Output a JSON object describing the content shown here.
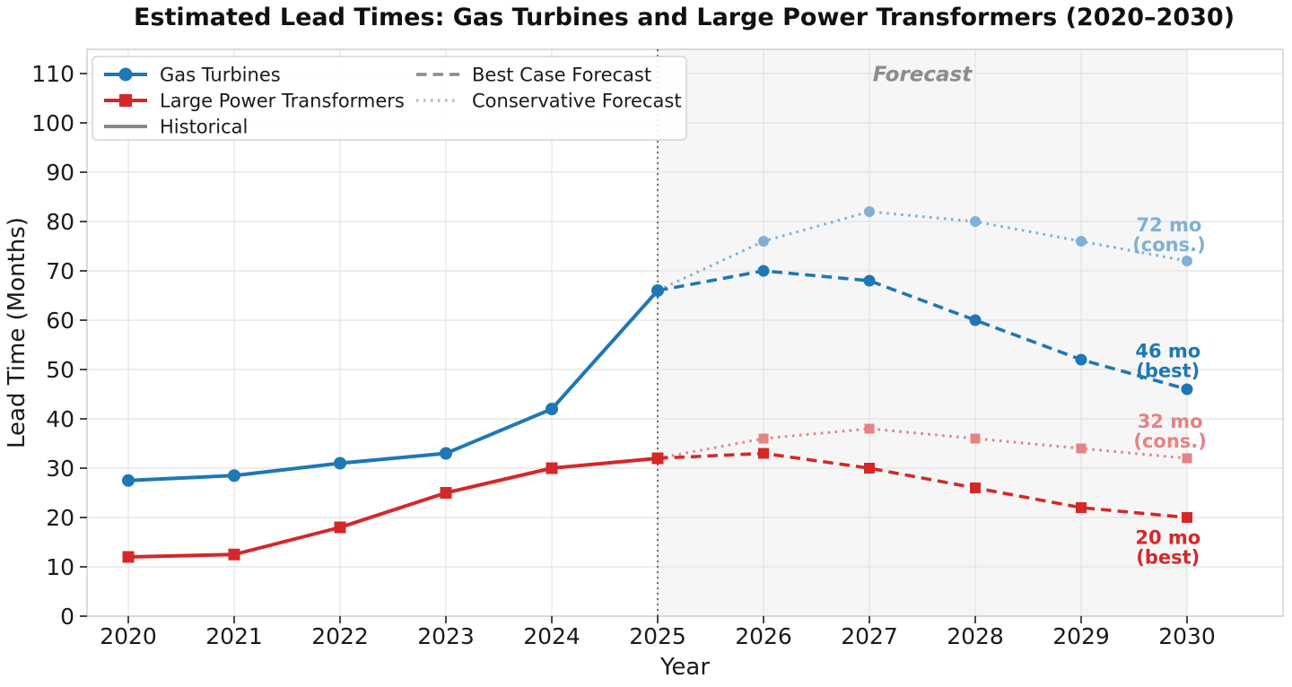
{
  "chart_data": {
    "type": "line",
    "title": "Estimated Lead Times: Gas Turbines and Large Power Transformers (2020–2030)",
    "xlabel": "Year",
    "ylabel": "Lead Time (Months)",
    "xlim": [
      2019.6,
      2030.9
    ],
    "ylim": [
      0,
      115
    ],
    "xticks": [
      2020,
      2021,
      2022,
      2023,
      2024,
      2025,
      2026,
      2027,
      2028,
      2029,
      2030
    ],
    "yticks": [
      0,
      10,
      20,
      30,
      40,
      50,
      60,
      70,
      80,
      90,
      100,
      110
    ],
    "grid": true,
    "forecast_region": {
      "start_year": 2025,
      "end_year": 2030,
      "label": "Forecast",
      "label_year": 2027.5,
      "label_month": 108.5,
      "shade_color": "#ebebeb",
      "divider_color": "#4d4d4d",
      "label_color": "#8c8c8c"
    },
    "series": [
      {
        "name": "Gas Turbines (Conservative Forecast)",
        "role": "conservative",
        "color": "#7fb0d5",
        "marker": "circle",
        "line_style": "dotted",
        "x": [
          2025,
          2026,
          2027,
          2028,
          2029,
          2030
        ],
        "values": [
          66,
          76,
          82,
          80,
          76,
          72
        ]
      },
      {
        "name": "Large Power Transformers (Conservative Forecast)",
        "role": "conservative",
        "color": "#e58384",
        "marker": "square",
        "line_style": "dotted",
        "x": [
          2025,
          2026,
          2027,
          2028,
          2029,
          2030
        ],
        "values": [
          32,
          36,
          38,
          36,
          34,
          32
        ]
      },
      {
        "name": "Gas Turbines (Best Case Forecast)",
        "role": "best",
        "color": "#1f77b4",
        "marker": "circle",
        "line_style": "dashed",
        "x": [
          2025,
          2026,
          2027,
          2028,
          2029,
          2030
        ],
        "values": [
          66,
          70,
          68,
          60,
          52,
          46
        ]
      },
      {
        "name": "Large Power Transformers (Best Case Forecast)",
        "role": "best",
        "color": "#d62728",
        "marker": "square",
        "line_style": "dashed",
        "x": [
          2025,
          2026,
          2027,
          2028,
          2029,
          2030
        ],
        "values": [
          32,
          33,
          30,
          26,
          22,
          20
        ]
      },
      {
        "name": "Gas Turbines",
        "role": "historical",
        "color": "#1f77b4",
        "marker": "circle",
        "line_style": "solid",
        "x": [
          2020,
          2021,
          2022,
          2023,
          2024,
          2025
        ],
        "values": [
          27.5,
          28.5,
          31,
          33,
          42,
          66
        ]
      },
      {
        "name": "Large Power Transformers",
        "role": "historical",
        "color": "#d62728",
        "marker": "square",
        "line_style": "solid",
        "x": [
          2020,
          2021,
          2022,
          2023,
          2024,
          2025
        ],
        "values": [
          12,
          12.5,
          18,
          25,
          30,
          32
        ]
      }
    ],
    "annotations": [
      {
        "lines": [
          "72 mo",
          "(cons.)"
        ],
        "label_year": 2029.83,
        "label_month": 78.0,
        "color": "#7fb0d5"
      },
      {
        "lines": [
          "46 mo",
          "(best)"
        ],
        "label_year": 2029.82,
        "label_month": 52.5,
        "color": "#1f77b4"
      },
      {
        "lines": [
          "32 mo",
          "(cons.)"
        ],
        "label_year": 2029.84,
        "label_month": 38.2,
        "color": "#e58384"
      },
      {
        "lines": [
          "20 mo",
          "(best)"
        ],
        "label_year": 2029.82,
        "label_month": 14.6,
        "color": "#d62728"
      }
    ],
    "legend": {
      "position": "upper left",
      "columns": 2,
      "items": [
        {
          "label": "Gas Turbines",
          "color": "#1f77b4",
          "line_style": "solid",
          "marker": "circle",
          "column": 0
        },
        {
          "label": "Large Power Transformers",
          "color": "#d62728",
          "line_style": "solid",
          "marker": "square",
          "column": 0
        },
        {
          "label": "Historical",
          "color": "#8a8a8a",
          "line_style": "solid",
          "marker": "none",
          "column": 0
        },
        {
          "label": "Best Case Forecast",
          "color": "#8a8a8a",
          "line_style": "dashed",
          "marker": "none",
          "column": 1
        },
        {
          "label": "Conservative Forecast",
          "color": "#b7bdc5",
          "line_style": "dotted",
          "marker": "none",
          "column": 1
        }
      ]
    },
    "grid_color": "#e2e2e2",
    "spine_color": "#c8c8c8",
    "tick_color": "#333333",
    "tick_label_color": "#1a1a1a"
  }
}
